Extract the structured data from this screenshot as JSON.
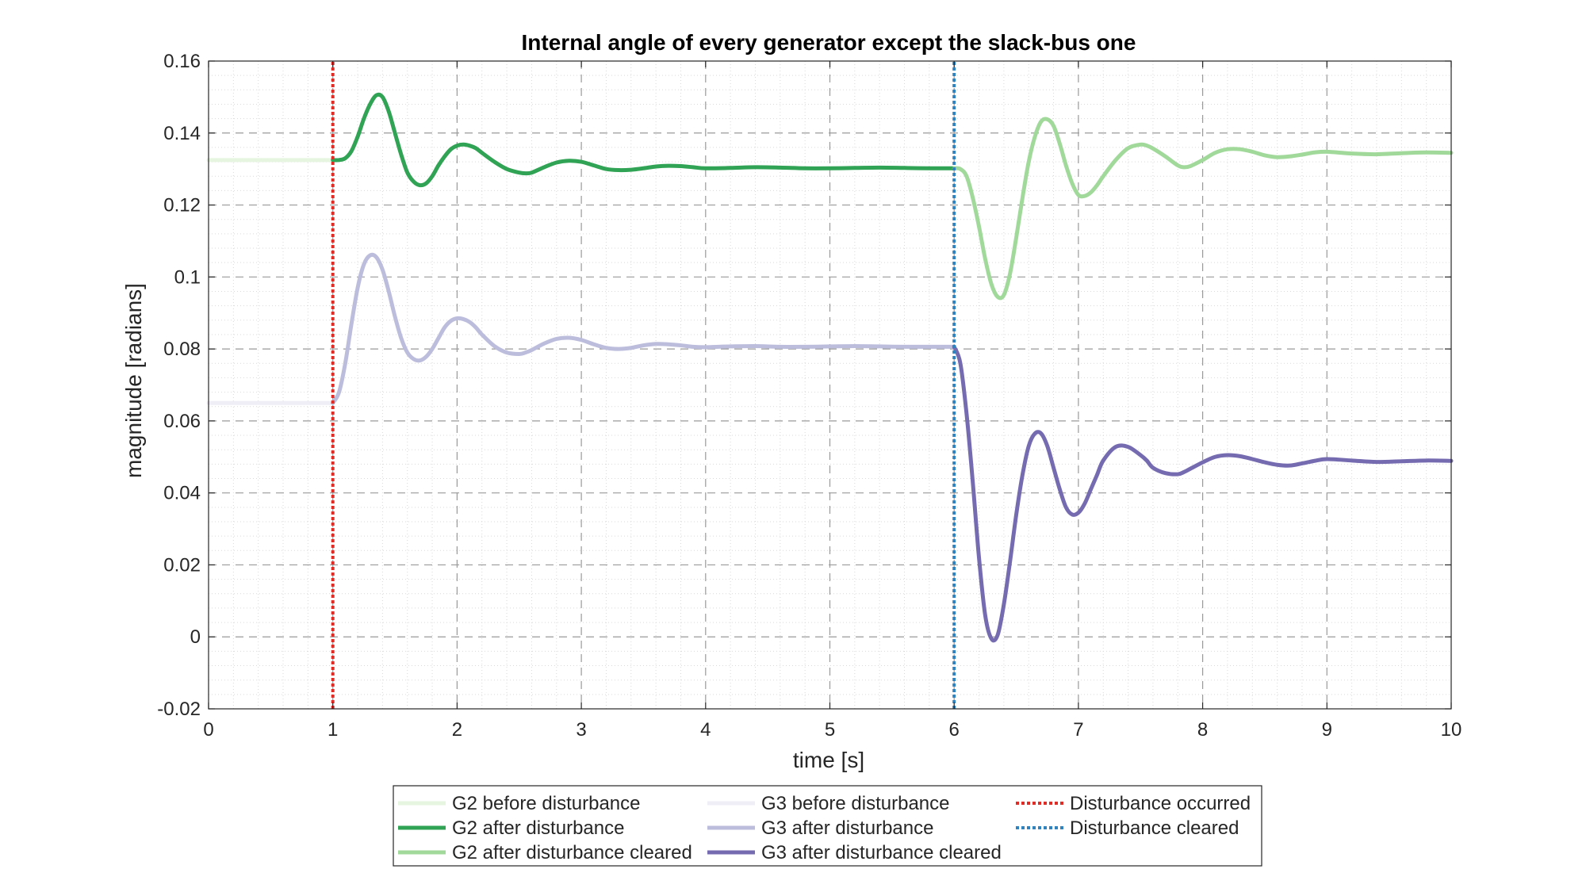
{
  "chart_data": {
    "type": "line",
    "title": "Internal angle of every generator except the slack-bus one",
    "xlabel": "time [s]",
    "ylabel": "magnitude [radians]",
    "xlim": [
      0,
      10
    ],
    "ylim": [
      -0.02,
      0.16
    ],
    "xticks": [
      0,
      1,
      2,
      3,
      4,
      5,
      6,
      7,
      8,
      9,
      10
    ],
    "xtick_labels": [
      "0",
      "1",
      "2",
      "3",
      "4",
      "5",
      "6",
      "7",
      "8",
      "9",
      "10"
    ],
    "yticks": [
      -0.02,
      0,
      0.02,
      0.04,
      0.06,
      0.08,
      0.1,
      0.12,
      0.14,
      0.16
    ],
    "ytick_labels": [
      "-0.02",
      "0",
      "0.02",
      "0.04",
      "0.06",
      "0.08",
      "0.1",
      "0.12",
      "0.14",
      "0.16"
    ],
    "grid": true,
    "minor_grid": true,
    "legend_position": "bottom-outside",
    "series": [
      {
        "name": "G2 before disturbance",
        "color": "#e5f5e0",
        "style": "solid",
        "x": [
          0,
          1
        ],
        "y": [
          0.1325,
          0.1325
        ]
      },
      {
        "name": "G2 after disturbance",
        "color": "#31a354",
        "style": "solid",
        "x": [
          1.0,
          1.05,
          1.1,
          1.15,
          1.2,
          1.25,
          1.3,
          1.35,
          1.4,
          1.45,
          1.5,
          1.55,
          1.6,
          1.65,
          1.7,
          1.75,
          1.8,
          1.85,
          1.9,
          1.95,
          2.0,
          2.05,
          2.1,
          2.15,
          2.2,
          2.3,
          2.4,
          2.5,
          2.55,
          2.6,
          2.7,
          2.8,
          2.9,
          3.0,
          3.1,
          3.2,
          3.3,
          3.4,
          3.5,
          3.6,
          3.7,
          3.8,
          3.9,
          4.0,
          4.2,
          4.4,
          4.6,
          4.8,
          5.0,
          5.2,
          5.4,
          5.6,
          5.8,
          6.0
        ],
        "y": [
          0.1325,
          0.1325,
          0.133,
          0.135,
          0.139,
          0.144,
          0.148,
          0.1505,
          0.15,
          0.146,
          0.14,
          0.134,
          0.129,
          0.1265,
          0.1255,
          0.126,
          0.128,
          0.131,
          0.1335,
          0.1355,
          0.1365,
          0.1368,
          0.1365,
          0.1358,
          0.1345,
          0.132,
          0.13,
          0.129,
          0.1288,
          0.129,
          0.1305,
          0.1318,
          0.1323,
          0.132,
          0.131,
          0.13,
          0.1297,
          0.1298,
          0.1302,
          0.1307,
          0.1309,
          0.1308,
          0.1305,
          0.1302,
          0.1303,
          0.1305,
          0.1304,
          0.1302,
          0.1302,
          0.1303,
          0.1304,
          0.1303,
          0.1302,
          0.1302
        ]
      },
      {
        "name": "G2 after disturbance cleared",
        "color": "#a1d99b",
        "style": "solid",
        "x": [
          6.0,
          6.05,
          6.1,
          6.15,
          6.2,
          6.25,
          6.3,
          6.35,
          6.4,
          6.45,
          6.5,
          6.55,
          6.6,
          6.65,
          6.7,
          6.75,
          6.8,
          6.85,
          6.9,
          6.95,
          7.0,
          7.05,
          7.1,
          7.15,
          7.2,
          7.3,
          7.4,
          7.5,
          7.55,
          7.6,
          7.7,
          7.8,
          7.85,
          7.9,
          8.0,
          8.1,
          8.2,
          8.3,
          8.4,
          8.5,
          8.6,
          8.7,
          8.8,
          8.9,
          9.0,
          9.2,
          9.4,
          9.6,
          9.8,
          10.0
        ],
        "y": [
          0.1302,
          0.13,
          0.128,
          0.122,
          0.114,
          0.105,
          0.098,
          0.0945,
          0.095,
          0.101,
          0.111,
          0.122,
          0.132,
          0.139,
          0.1432,
          0.1438,
          0.142,
          0.137,
          0.131,
          0.126,
          0.1228,
          0.1225,
          0.1235,
          0.1255,
          0.128,
          0.1325,
          0.1358,
          0.1368,
          0.1365,
          0.1357,
          0.1335,
          0.131,
          0.1305,
          0.1308,
          0.1325,
          0.1345,
          0.1355,
          0.1355,
          0.1348,
          0.1338,
          0.1333,
          0.1335,
          0.134,
          0.1346,
          0.1348,
          0.1343,
          0.1341,
          0.1344,
          0.1346,
          0.1345
        ]
      },
      {
        "name": "G3 before disturbance",
        "color": "#efedf5",
        "style": "solid",
        "x": [
          0,
          1
        ],
        "y": [
          0.065,
          0.065
        ]
      },
      {
        "name": "G3 after disturbance",
        "color": "#bcbddc",
        "style": "solid",
        "x": [
          1.0,
          1.05,
          1.1,
          1.15,
          1.2,
          1.25,
          1.3,
          1.35,
          1.4,
          1.45,
          1.5,
          1.55,
          1.6,
          1.65,
          1.7,
          1.75,
          1.8,
          1.85,
          1.9,
          1.95,
          2.0,
          2.05,
          2.1,
          2.15,
          2.2,
          2.3,
          2.4,
          2.5,
          2.55,
          2.6,
          2.7,
          2.8,
          2.9,
          3.0,
          3.1,
          3.2,
          3.3,
          3.4,
          3.5,
          3.6,
          3.7,
          3.8,
          3.9,
          4.0,
          4.2,
          4.4,
          4.6,
          4.8,
          5.0,
          5.2,
          5.4,
          5.6,
          5.8,
          6.0
        ],
        "y": [
          0.065,
          0.068,
          0.076,
          0.087,
          0.097,
          0.1035,
          0.106,
          0.1055,
          0.102,
          0.096,
          0.089,
          0.083,
          0.079,
          0.0772,
          0.0768,
          0.0778,
          0.08,
          0.083,
          0.086,
          0.0878,
          0.0885,
          0.0883,
          0.0875,
          0.086,
          0.084,
          0.0808,
          0.079,
          0.0786,
          0.079,
          0.0797,
          0.0815,
          0.0828,
          0.0831,
          0.0825,
          0.0813,
          0.0803,
          0.08,
          0.0803,
          0.081,
          0.0814,
          0.0813,
          0.081,
          0.0806,
          0.0805,
          0.0807,
          0.0808,
          0.0806,
          0.0806,
          0.0807,
          0.0808,
          0.0807,
          0.0806,
          0.0806,
          0.0806
        ]
      },
      {
        "name": "G3 after disturbance cleared",
        "color": "#756bb1",
        "style": "solid",
        "x": [
          6.0,
          6.05,
          6.1,
          6.15,
          6.2,
          6.25,
          6.3,
          6.35,
          6.4,
          6.45,
          6.5,
          6.55,
          6.6,
          6.65,
          6.7,
          6.75,
          6.8,
          6.85,
          6.9,
          6.95,
          7.0,
          7.05,
          7.1,
          7.15,
          7.2,
          7.3,
          7.4,
          7.5,
          7.55,
          7.6,
          7.7,
          7.8,
          7.85,
          7.9,
          8.0,
          8.1,
          8.2,
          8.3,
          8.4,
          8.5,
          8.6,
          8.7,
          8.8,
          8.9,
          9.0,
          9.2,
          9.4,
          9.6,
          9.8,
          10.0
        ],
        "y": [
          0.0806,
          0.076,
          0.062,
          0.043,
          0.022,
          0.006,
          -0.0005,
          0.0005,
          0.009,
          0.021,
          0.034,
          0.045,
          0.053,
          0.0565,
          0.0565,
          0.053,
          0.047,
          0.041,
          0.036,
          0.034,
          0.0345,
          0.037,
          0.041,
          0.045,
          0.049,
          0.0528,
          0.0528,
          0.0505,
          0.049,
          0.047,
          0.0455,
          0.0452,
          0.0458,
          0.0467,
          0.0485,
          0.05,
          0.0505,
          0.0502,
          0.0494,
          0.0485,
          0.0478,
          0.0476,
          0.0482,
          0.0489,
          0.0494,
          0.049,
          0.0486,
          0.0488,
          0.049,
          0.0489
        ]
      },
      {
        "name": "Disturbance occurred",
        "color": "#de2d26",
        "style": "dotted",
        "x": [
          1,
          1
        ],
        "y": [
          -0.02,
          0.16
        ]
      },
      {
        "name": "Disturbance cleared",
        "color": "#3182bd",
        "style": "dotted",
        "x": [
          6,
          6
        ],
        "y": [
          -0.02,
          0.16
        ]
      }
    ],
    "legend_columns": [
      [
        "G2 before disturbance",
        "G2 after disturbance",
        "G2 after disturbance cleared"
      ],
      [
        "G3 before disturbance",
        "G3 after disturbance",
        "G3 after disturbance cleared"
      ],
      [
        "Disturbance occurred",
        "Disturbance cleared"
      ]
    ]
  }
}
